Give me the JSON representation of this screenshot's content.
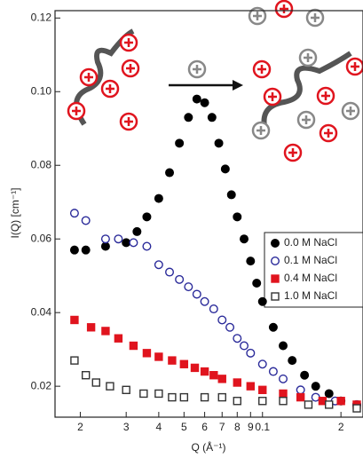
{
  "chart_data": {
    "type": "scatter",
    "xlabel": "Q (Å⁻¹)",
    "ylabel": "I(Q) [cm⁻¹]",
    "xscale": "log",
    "xlim": [
      0.016,
      0.243
    ],
    "ylim": [
      0.0116,
      0.122
    ],
    "xticks": [
      {
        "value": 0.02,
        "label": "2"
      },
      {
        "value": 0.03,
        "label": "3"
      },
      {
        "value": 0.04,
        "label": "4"
      },
      {
        "value": 0.05,
        "label": "5"
      },
      {
        "value": 0.06,
        "label": "6"
      },
      {
        "value": 0.07,
        "label": "7"
      },
      {
        "value": 0.08,
        "label": "8"
      },
      {
        "value": 0.09,
        "label": "9"
      },
      0.1,
      {
        "value": 0.2,
        "label": "2"
      }
    ],
    "yticks": [
      0.02,
      0.04,
      0.06,
      0.08,
      {
        "value": 0.1,
        "label": "0.10"
      },
      0.12
    ],
    "legend": "right",
    "series": [
      {
        "name": "0.0 M NaCl",
        "color": "#000000",
        "marker": "circle",
        "filled": true,
        "x": [
          0.019,
          0.021,
          0.025,
          0.03,
          0.033,
          0.036,
          0.04,
          0.044,
          0.048,
          0.052,
          0.056,
          0.06,
          0.064,
          0.068,
          0.072,
          0.076,
          0.08,
          0.085,
          0.09,
          0.095,
          0.1,
          0.11,
          0.12,
          0.13,
          0.145,
          0.16,
          0.18,
          0.2,
          0.23
        ],
        "values": [
          0.057,
          0.057,
          0.058,
          0.059,
          0.062,
          0.066,
          0.071,
          0.078,
          0.086,
          0.093,
          0.098,
          0.097,
          0.093,
          0.086,
          0.079,
          0.072,
          0.066,
          0.06,
          0.054,
          0.048,
          0.043,
          0.036,
          0.031,
          0.027,
          0.023,
          0.02,
          0.018,
          0.016,
          0.015
        ]
      },
      {
        "name": "0.1 M NaCl",
        "color": "#2b2b9a",
        "marker": "circle",
        "filled": false,
        "x": [
          0.019,
          0.021,
          0.025,
          0.028,
          0.032,
          0.036,
          0.04,
          0.044,
          0.048,
          0.052,
          0.056,
          0.06,
          0.065,
          0.07,
          0.075,
          0.08,
          0.085,
          0.09,
          0.1,
          0.11,
          0.12,
          0.14,
          0.16,
          0.19,
          0.23
        ],
        "values": [
          0.067,
          0.065,
          0.06,
          0.06,
          0.059,
          0.058,
          0.053,
          0.051,
          0.049,
          0.047,
          0.045,
          0.043,
          0.041,
          0.038,
          0.036,
          0.033,
          0.031,
          0.029,
          0.026,
          0.024,
          0.022,
          0.019,
          0.017,
          0.016,
          0.015
        ]
      },
      {
        "name": "0.4 M NaCl",
        "color": "#e0141e",
        "marker": "square",
        "filled": true,
        "x": [
          0.019,
          0.022,
          0.025,
          0.028,
          0.032,
          0.036,
          0.04,
          0.045,
          0.05,
          0.055,
          0.06,
          0.065,
          0.07,
          0.08,
          0.09,
          0.1,
          0.12,
          0.14,
          0.17,
          0.2,
          0.23
        ],
        "values": [
          0.038,
          0.036,
          0.035,
          0.033,
          0.031,
          0.029,
          0.028,
          0.027,
          0.026,
          0.025,
          0.024,
          0.023,
          0.022,
          0.021,
          0.02,
          0.019,
          0.018,
          0.017,
          0.016,
          0.016,
          0.015
        ]
      },
      {
        "name": "1.0 M NaCl",
        "color": "#333333",
        "marker": "square",
        "filled": false,
        "x": [
          0.019,
          0.021,
          0.023,
          0.026,
          0.03,
          0.035,
          0.04,
          0.045,
          0.05,
          0.06,
          0.07,
          0.08,
          0.1,
          0.12,
          0.15,
          0.18,
          0.23
        ],
        "values": [
          0.027,
          0.023,
          0.021,
          0.02,
          0.019,
          0.018,
          0.018,
          0.017,
          0.017,
          0.017,
          0.017,
          0.016,
          0.016,
          0.016,
          0.015,
          0.015,
          0.014
        ]
      }
    ]
  }
}
